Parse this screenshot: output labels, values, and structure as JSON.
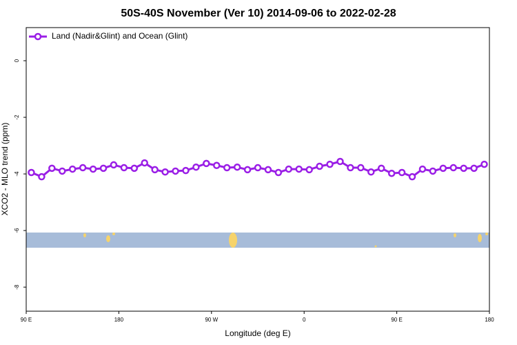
{
  "chart_data": {
    "type": "line",
    "title": "50S-40S November (Ver 10)   2014-09-06 to 2022-02-28",
    "x_label": "Longitude (deg E)",
    "y_label": "XCO2 - MLO trend (ppm)",
    "x": [
      95,
      105,
      115,
      125,
      135,
      145,
      155,
      165,
      175,
      185,
      195,
      205,
      215,
      225,
      235,
      245,
      255,
      265,
      275,
      285,
      295,
      305,
      315,
      325,
      335,
      345,
      355,
      365,
      375,
      385,
      395,
      405,
      415,
      425,
      435,
      445,
      455,
      465,
      475,
      485,
      495,
      505,
      515,
      525,
      535
    ],
    "series": [
      {
        "name": "Land (Nadir&Glint) and Ocean (Glint)",
        "color": "#9a1ee6",
        "values": [
          -3.95,
          -4.1,
          -3.8,
          -3.9,
          -3.83,
          -3.78,
          -3.83,
          -3.8,
          -3.68,
          -3.78,
          -3.8,
          -3.61,
          -3.85,
          -3.93,
          -3.9,
          -3.88,
          -3.76,
          -3.63,
          -3.7,
          -3.78,
          -3.76,
          -3.85,
          -3.78,
          -3.85,
          -3.95,
          -3.83,
          -3.83,
          -3.85,
          -3.73,
          -3.66,
          -3.56,
          -3.78,
          -3.78,
          -3.93,
          -3.8,
          -3.98,
          -3.95,
          -4.1,
          -3.83,
          -3.9,
          -3.8,
          -3.78,
          -3.8,
          -3.8,
          -3.66
        ]
      }
    ],
    "xlim": [
      90,
      540
    ],
    "xticks": [
      {
        "value": 90,
        "label": "90 E"
      },
      180,
      {
        "value": 270,
        "label": "90 W"
      },
      {
        "value": 360,
        "label": "0"
      },
      {
        "value": 450,
        "label": "90 E"
      },
      {
        "value": 540,
        "label": "180"
      }
    ],
    "ylim": [
      -8.85,
      1.17
    ],
    "yticks": [
      0,
      -2,
      -4,
      -6,
      -8
    ],
    "legend": "top-left"
  }
}
